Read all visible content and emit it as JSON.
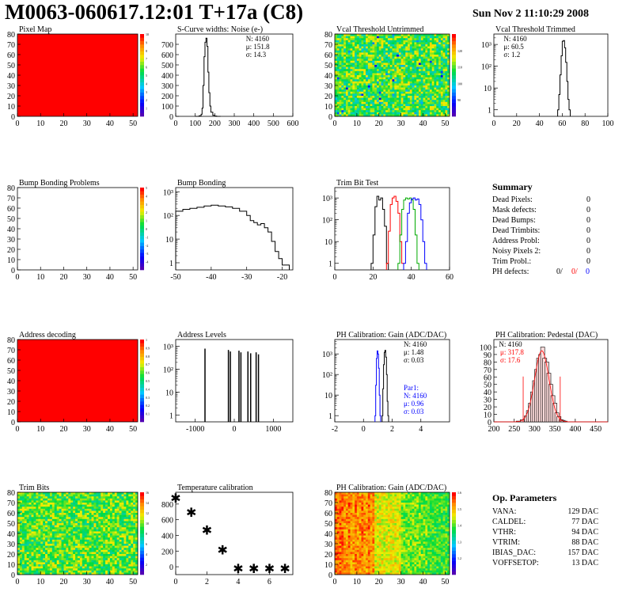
{
  "header": {
    "title": "M0063-060617.12:01 T+17a (C8)",
    "date": "Sun Nov  2 11:10:29 2008"
  },
  "summary": {
    "title": "Summary",
    "rows": [
      {
        "label": "Dead Pixels:",
        "value": "0"
      },
      {
        "label": "Mask defects:",
        "value": "0"
      },
      {
        "label": "Dead Bumps:",
        "value": "0"
      },
      {
        "label": "Dead Trimbits:",
        "value": "0"
      },
      {
        "label": "Address Probl:",
        "value": "0"
      },
      {
        "label": "Noisy Pixels 2:",
        "value": "0"
      },
      {
        "label": "Trim Probl.:",
        "value": "0"
      }
    ],
    "ph_label": "PH defects:",
    "ph_values": [
      {
        "value": "0/",
        "color": "#000000"
      },
      {
        "value": "0/",
        "color": "#ff0000"
      },
      {
        "value": "0",
        "color": "#0000ff"
      }
    ]
  },
  "op_params": {
    "title": "Op. Parameters",
    "rows": [
      {
        "label": "VANA:",
        "value": "129 DAC"
      },
      {
        "label": "CALDEL:",
        "value": "77 DAC"
      },
      {
        "label": "VTHR:",
        "value": "94 DAC"
      },
      {
        "label": "VTRIM:",
        "value": "88 DAC"
      },
      {
        "label": "IBIAS_DAC:",
        "value": "157 DAC"
      },
      {
        "label": "VOFFSETOP:",
        "value": "13 DAC"
      }
    ]
  },
  "chart_data": [
    {
      "id": "pixel-map",
      "type": "heatmap",
      "title": "Pixel Map",
      "xlim": [
        0,
        52
      ],
      "ylim": [
        0,
        80
      ],
      "xticks": [
        0,
        10,
        20,
        30,
        40,
        50
      ],
      "yticks": [
        0,
        10,
        20,
        30,
        40,
        50,
        60,
        70,
        80
      ],
      "fill": "uniform",
      "value": 10,
      "colorbar": {
        "min": 0,
        "max": 10,
        "ticks": [
          1,
          2,
          3,
          4,
          5,
          6,
          7,
          8,
          9,
          10
        ]
      }
    },
    {
      "id": "noise",
      "type": "line",
      "title": "S-Curve widths: Noise (e-)",
      "xlim": [
        0,
        600
      ],
      "ylim": [
        0,
        800
      ],
      "xticks": [
        0,
        100,
        200,
        300,
        400,
        500,
        600
      ],
      "yticks": [
        0,
        100,
        200,
        300,
        400,
        500,
        600,
        700
      ],
      "stats": [
        "N: 4160",
        "μ: 151.8",
        "σ: 14.3"
      ],
      "series": [
        {
          "color": "#000000",
          "x": [
            100,
            120,
            130,
            135,
            140,
            145,
            150,
            155,
            160,
            165,
            170,
            175,
            180,
            190,
            200,
            210
          ],
          "y": [
            0,
            5,
            20,
            80,
            300,
            580,
            720,
            760,
            680,
            430,
            230,
            100,
            40,
            10,
            3,
            0
          ]
        }
      ]
    },
    {
      "id": "vcal-untrimmed",
      "type": "heatmap",
      "title": "Vcal Threshold Untrimmed",
      "xlim": [
        0,
        52
      ],
      "ylim": [
        0,
        80
      ],
      "xticks": [
        0,
        10,
        20,
        30,
        40,
        50
      ],
      "yticks": [
        0,
        10,
        20,
        30,
        40,
        50,
        60,
        70,
        80
      ],
      "fill": "noise-yellow-green",
      "colorbar": {
        "min": 80,
        "max": 130,
        "ticks": [
          90,
          100,
          110,
          120
        ]
      }
    },
    {
      "id": "vcal-trimmed",
      "type": "line",
      "title": "Vcal Threshold Trimmed",
      "xlim": [
        0,
        100
      ],
      "ylim": [
        0.5,
        3000
      ],
      "ylog": true,
      "xticks": [
        0,
        20,
        40,
        60,
        80,
        100
      ],
      "ytick_labels": [
        "1",
        "10",
        "10²",
        "10³"
      ],
      "stats": [
        "N: 4160",
        "μ: 60.5",
        "σ: 1.2"
      ],
      "series": [
        {
          "color": "#000000",
          "x": [
            56,
            57,
            58,
            59,
            60,
            61,
            62,
            63,
            64,
            65,
            66
          ],
          "y": [
            1,
            5,
            40,
            300,
            1400,
            1500,
            700,
            150,
            20,
            3,
            1
          ]
        }
      ]
    },
    {
      "id": "bump-problems",
      "type": "heatmap",
      "title": "Bump Bonding Problems",
      "xlim": [
        0,
        52
      ],
      "ylim": [
        0,
        80
      ],
      "xticks": [
        0,
        10,
        20,
        30,
        40,
        50
      ],
      "yticks": [
        0,
        10,
        20,
        30,
        40,
        50,
        60,
        70,
        80
      ],
      "fill": "empty",
      "colorbar": {
        "min": -5,
        "max": 5,
        "ticks": [
          -4,
          -3,
          -2,
          -1,
          0,
          1,
          2,
          3,
          4,
          5
        ]
      }
    },
    {
      "id": "bump-bonding",
      "type": "line",
      "title": "Bump Bonding",
      "xlim": [
        -50,
        -17
      ],
      "ylim": [
        0.5,
        1500
      ],
      "ylog": true,
      "xticks": [
        -50,
        -40,
        -30,
        -20
      ],
      "ytick_labels": [
        "1",
        "10",
        "10²",
        "10³"
      ],
      "series": [
        {
          "color": "#000000",
          "x": [
            -50,
            -48,
            -46,
            -44,
            -42,
            -40,
            -38,
            -36,
            -34,
            -32,
            -30,
            -29,
            -28,
            -27,
            -26,
            -25,
            -24,
            -23,
            -22,
            -21,
            -20
          ],
          "y": [
            150,
            180,
            200,
            220,
            250,
            270,
            250,
            230,
            200,
            150,
            100,
            60,
            50,
            40,
            45,
            30,
            20,
            8,
            3,
            1.5,
            0.8
          ]
        }
      ]
    },
    {
      "id": "trim-bit-test",
      "type": "line",
      "title": "Trim Bit Test",
      "xlim": [
        0,
        60
      ],
      "ylim": [
        0.5,
        3000
      ],
      "ylog": true,
      "xticks": [
        0,
        20,
        40,
        60
      ],
      "ytick_labels": [
        "1",
        "10",
        "10²",
        "10³"
      ],
      "series": [
        {
          "color": "#000000",
          "x": [
            19,
            20,
            21,
            22,
            23,
            24,
            25,
            26,
            27
          ],
          "y": [
            1,
            20,
            400,
            1200,
            800,
            1000,
            300,
            50,
            1
          ]
        },
        {
          "color": "#ff0000",
          "x": [
            27,
            28,
            29,
            30,
            31,
            32,
            33,
            34,
            35
          ],
          "y": [
            1,
            30,
            500,
            1000,
            1200,
            700,
            200,
            10,
            1
          ]
        },
        {
          "color": "#00aa00",
          "x": [
            33,
            34,
            35,
            36,
            37,
            38,
            39,
            40,
            41,
            42,
            43
          ],
          "y": [
            1,
            20,
            300,
            800,
            1000,
            900,
            1000,
            800,
            300,
            20,
            1
          ]
        },
        {
          "color": "#0000ff",
          "x": [
            36,
            37,
            38,
            39,
            40,
            41,
            42,
            43,
            44,
            45,
            46,
            47
          ],
          "y": [
            1,
            10,
            200,
            600,
            900,
            1000,
            800,
            900,
            500,
            100,
            10,
            1
          ]
        }
      ]
    },
    {
      "id": "address-decoding",
      "type": "heatmap",
      "title": "Address decoding",
      "xlim": [
        0,
        52
      ],
      "ylim": [
        0,
        80
      ],
      "xticks": [
        0,
        10,
        20,
        30,
        40,
        50
      ],
      "yticks": [
        0,
        10,
        20,
        30,
        40,
        50,
        60,
        70,
        80
      ],
      "fill": "uniform",
      "value": 1,
      "colorbar": {
        "min": 0,
        "max": 1,
        "ticks": [
          0.1,
          0.2,
          0.3,
          0.4,
          0.5,
          0.6,
          0.7,
          0.8,
          0.9,
          1
        ]
      }
    },
    {
      "id": "address-levels",
      "type": "bar",
      "title": "Address Levels",
      "xlim": [
        -1500,
        1500
      ],
      "ylim": [
        0.5,
        2000
      ],
      "ylog": true,
      "xticks": [
        -1000,
        0,
        1000
      ],
      "ytick_labels": [
        "1",
        "10",
        "10²",
        "10³"
      ],
      "x": [
        -750,
        -150,
        -100,
        120,
        170,
        350,
        420,
        560,
        620
      ],
      "values": [
        800,
        700,
        600,
        650,
        550,
        600,
        500,
        550,
        450
      ]
    },
    {
      "id": "ph-gain",
      "type": "line",
      "title": "PH Calibration: Gain (ADC/DAC)",
      "xlim": [
        -2,
        6
      ],
      "ylim": [
        0.5,
        5000
      ],
      "ylog": true,
      "xticks": [
        -2,
        0,
        2,
        4
      ],
      "ytick_labels": [
        "1",
        "10",
        "10²",
        "10³"
      ],
      "stats": [
        "N: 4160",
        "μ: 1.48",
        "σ: 0.03"
      ],
      "stats2": [
        "Par1:",
        "N: 4160",
        "μ: 0.96",
        "σ: 0.03"
      ],
      "series": [
        {
          "color": "#000000",
          "x": [
            1.3,
            1.35,
            1.4,
            1.45,
            1.5,
            1.55,
            1.6,
            1.65,
            1.7
          ],
          "y": [
            1,
            20,
            300,
            1200,
            1500,
            700,
            100,
            5,
            1
          ]
        },
        {
          "color": "#0000ff",
          "x": [
            0.8,
            0.85,
            0.9,
            0.95,
            1.0,
            1.05,
            1.1,
            1.15
          ],
          "y": [
            1,
            30,
            600,
            1400,
            1000,
            200,
            10,
            1
          ]
        }
      ]
    },
    {
      "id": "ph-pedestal",
      "type": "bar",
      "title": "PH Calibration: Pedestal (DAC)",
      "xlim": [
        200,
        480
      ],
      "ylim": [
        0,
        110
      ],
      "xticks": [
        200,
        250,
        300,
        350,
        400,
        450
      ],
      "yticks": [
        0,
        10,
        20,
        30,
        40,
        50,
        60,
        70,
        80,
        90,
        100
      ],
      "stats": [
        "N: 4160"
      ],
      "fit_stats": [
        "μ: 317.8",
        "σ: 17.6"
      ],
      "fit_mean": 317.8,
      "fit_sigma": 17.6,
      "fit_amp": 95,
      "markers": [
        272,
        363
      ],
      "x": [
        260,
        270,
        280,
        285,
        290,
        295,
        300,
        305,
        310,
        315,
        320,
        325,
        330,
        335,
        340,
        345,
        350,
        355,
        360,
        365,
        370,
        375
      ],
      "values": [
        1,
        3,
        8,
        15,
        25,
        40,
        55,
        70,
        85,
        90,
        100,
        85,
        80,
        65,
        50,
        35,
        25,
        12,
        7,
        3,
        2,
        1
      ]
    },
    {
      "id": "trim-bits",
      "type": "heatmap",
      "title": "Trim Bits",
      "xlim": [
        0,
        52
      ],
      "ylim": [
        0,
        80
      ],
      "xticks": [
        0,
        10,
        20,
        30,
        40,
        50
      ],
      "yticks": [
        0,
        10,
        20,
        30,
        40,
        50,
        60,
        70,
        80
      ],
      "fill": "noise-green",
      "colorbar": {
        "min": 0,
        "max": 16,
        "ticks": [
          2,
          4,
          6,
          8,
          10,
          12,
          14,
          16
        ]
      }
    },
    {
      "id": "temperature",
      "type": "scatter",
      "title": "Temperature calibration",
      "xlim": [
        0,
        7.5
      ],
      "ylim": [
        -100,
        950
      ],
      "xticks": [
        0,
        2,
        4,
        6
      ],
      "yticks": [
        0,
        200,
        400,
        600,
        800
      ],
      "x": [
        0,
        1,
        2,
        3,
        4,
        5,
        6,
        7
      ],
      "y": [
        880,
        700,
        470,
        220,
        -20,
        -20,
        -20,
        -20
      ]
    },
    {
      "id": "ph-gain-map",
      "type": "heatmap",
      "title": "PH Calibration: Gain (ADC/DAC)",
      "xlim": [
        0,
        52
      ],
      "ylim": [
        0,
        80
      ],
      "xticks": [
        0,
        10,
        20,
        30,
        40,
        50
      ],
      "yticks": [
        0,
        10,
        20,
        30,
        40,
        50,
        60,
        70,
        80
      ],
      "fill": "column-gradient",
      "colorbar": {
        "min": 1.1,
        "max": 1.6,
        "ticks": [
          1.2,
          1.3,
          1.4,
          1.5,
          1.6
        ]
      }
    }
  ]
}
